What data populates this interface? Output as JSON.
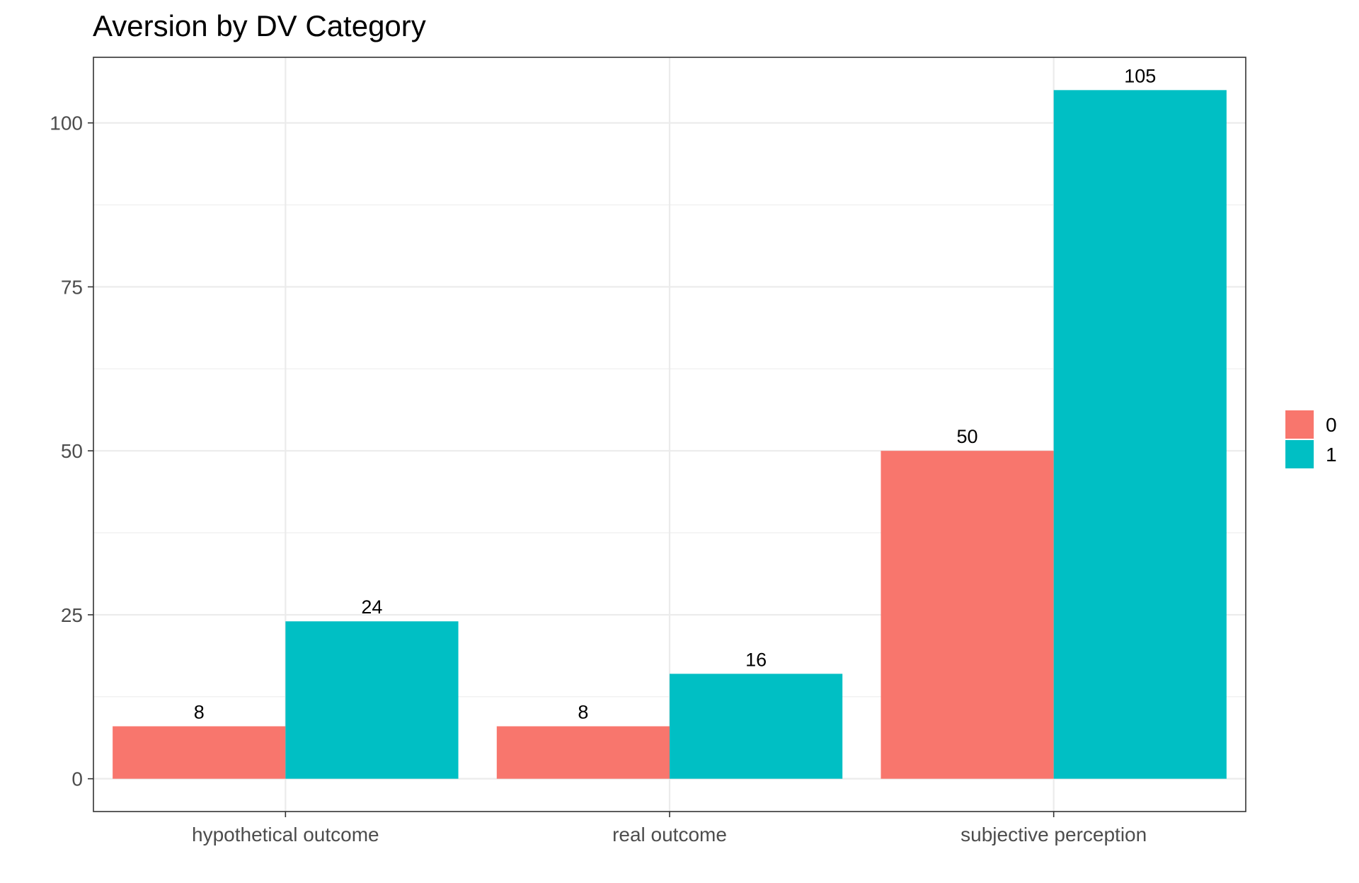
{
  "chart_data": {
    "type": "bar",
    "title": "Aversion by DV Category",
    "xlabel": "",
    "ylabel": "",
    "categories": [
      "hypothetical outcome",
      "real outcome",
      "subjective perception"
    ],
    "series": [
      {
        "name": "0",
        "values": [
          8,
          8,
          50
        ],
        "color": "#F8766D"
      },
      {
        "name": "1",
        "values": [
          24,
          16,
          105
        ],
        "color": "#00BFC4"
      }
    ],
    "ylim": [
      -5,
      110
    ],
    "yticks": [
      0,
      25,
      50,
      75,
      100
    ],
    "ytick_labels": [
      "0",
      "25",
      "50",
      "75",
      "100"
    ],
    "grid": true,
    "legend_position": "right",
    "legend_labels": [
      "0",
      "1"
    ]
  }
}
